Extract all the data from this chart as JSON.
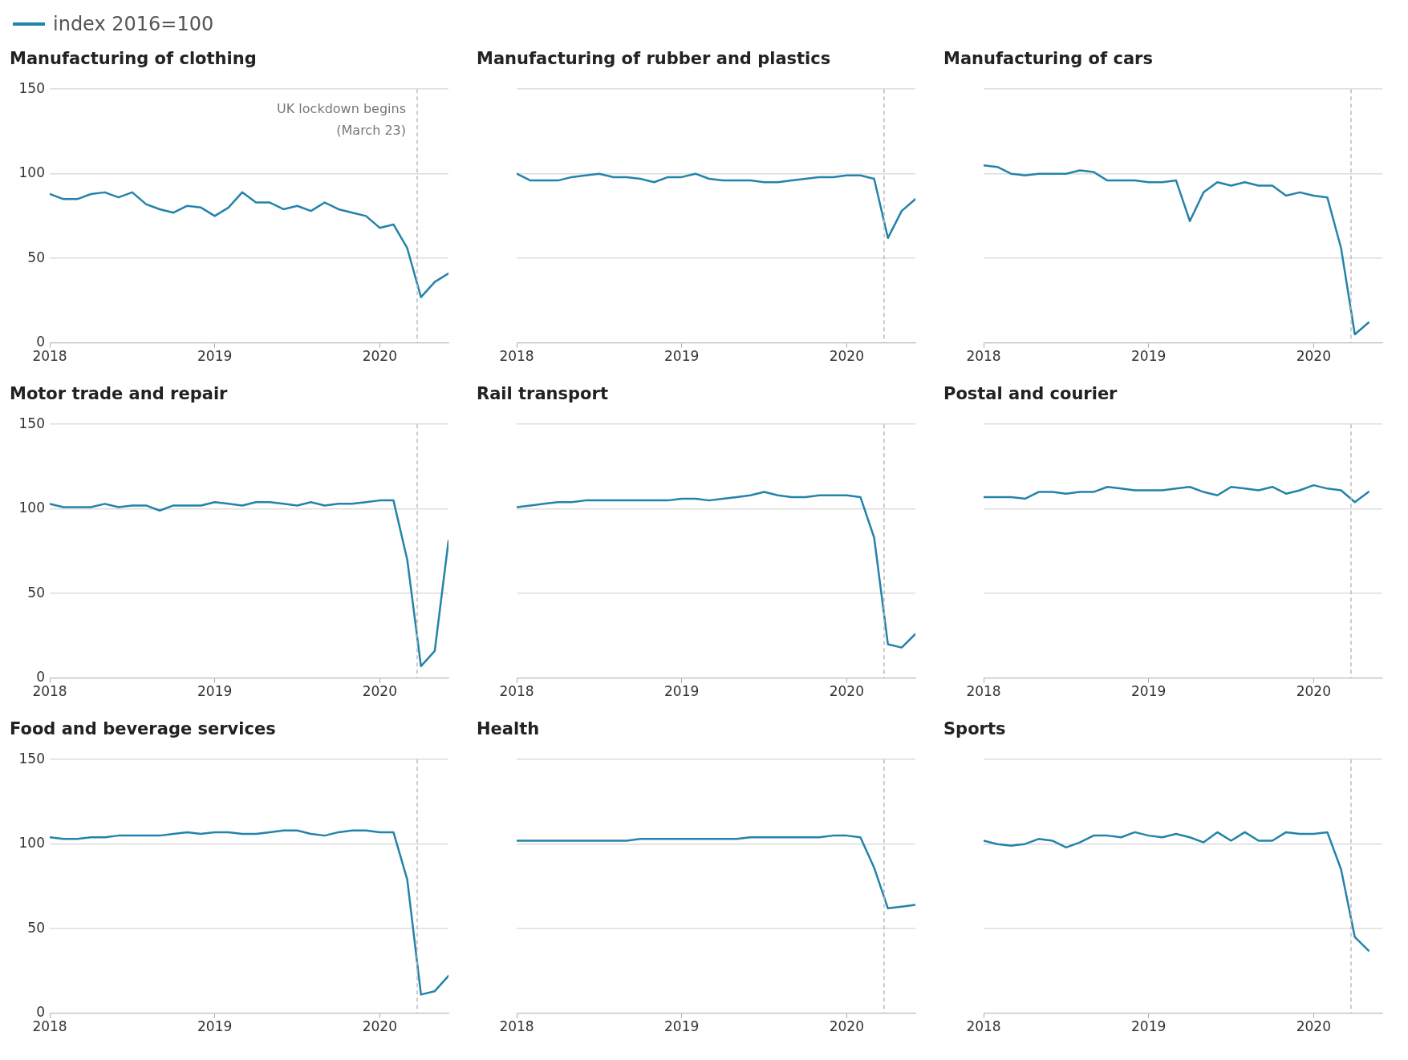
{
  "chart_data": [
    {
      "type": "line",
      "title": "Manufacturing of clothing",
      "legend": "top left",
      "grid": "y",
      "x": [
        "2018-01",
        "2018-02",
        "2018-03",
        "2018-04",
        "2018-05",
        "2018-06",
        "2018-07",
        "2018-08",
        "2018-09",
        "2018-10",
        "2018-11",
        "2018-12",
        "2019-01",
        "2019-02",
        "2019-03",
        "2019-04",
        "2019-05",
        "2019-06",
        "2019-07",
        "2019-08",
        "2019-09",
        "2019-10",
        "2019-11",
        "2019-12",
        "2020-01",
        "2020-02",
        "2020-03",
        "2020-04",
        "2020-05",
        "2020-06"
      ],
      "xlim": [
        "2018-01",
        "2020-06"
      ],
      "xticks": [
        "2018",
        "2019",
        "2020"
      ],
      "ylim": [
        0,
        150
      ],
      "yticks": [
        0,
        50,
        100,
        150
      ],
      "series": [
        {
          "name": "index 2016=100",
          "color": "#2383aa",
          "values": [
            88,
            85,
            85,
            88,
            89,
            86,
            89,
            82,
            79,
            77,
            81,
            80,
            75,
            80,
            89,
            83,
            83,
            79,
            81,
            78,
            83,
            79,
            77,
            75,
            68,
            70,
            56,
            27,
            36,
            41
          ]
        }
      ],
      "ref_lines": [
        {
          "axis": "x",
          "value": "2020-03-23",
          "label": "UK lockdown begins (March 23)",
          "color": "#bbbbbb",
          "line_style": "dashed"
        }
      ]
    },
    {
      "type": "line",
      "title": "Manufacturing of rubber and plastics",
      "tick_labels": "x",
      "grid": "y",
      "x": [
        "2018-01",
        "2018-02",
        "2018-03",
        "2018-04",
        "2018-05",
        "2018-06",
        "2018-07",
        "2018-08",
        "2018-09",
        "2018-10",
        "2018-11",
        "2018-12",
        "2019-01",
        "2019-02",
        "2019-03",
        "2019-04",
        "2019-05",
        "2019-06",
        "2019-07",
        "2019-08",
        "2019-09",
        "2019-10",
        "2019-11",
        "2019-12",
        "2020-01",
        "2020-02",
        "2020-03",
        "2020-04",
        "2020-05",
        "2020-06"
      ],
      "xlim": [
        "2018-01",
        "2020-06"
      ],
      "xticks": [
        "2018",
        "2019",
        "2020"
      ],
      "ylim": [
        0,
        150
      ],
      "yticks": [
        0,
        50,
        100,
        150
      ],
      "series": [
        {
          "color": "#2383aa",
          "values": [
            100,
            96,
            96,
            96,
            98,
            99,
            100,
            98,
            98,
            97,
            95,
            98,
            98,
            100,
            97,
            96,
            96,
            96,
            95,
            95,
            96,
            97,
            98,
            98,
            99,
            99,
            97,
            62,
            78,
            85
          ]
        }
      ],
      "ref_lines": [
        {
          "axis": "x",
          "value": "2020-03-23",
          "color": "#bbbbbb",
          "line_style": "dashed"
        }
      ]
    },
    {
      "type": "line",
      "title": "Manufacturing of cars",
      "tick_labels": "x",
      "grid": "y",
      "x": [
        "2018-01",
        "2018-02",
        "2018-03",
        "2018-04",
        "2018-05",
        "2018-06",
        "2018-07",
        "2018-08",
        "2018-09",
        "2018-10",
        "2018-11",
        "2018-12",
        "2019-01",
        "2019-02",
        "2019-03",
        "2019-04",
        "2019-05",
        "2019-06",
        "2019-07",
        "2019-08",
        "2019-09",
        "2019-10",
        "2019-11",
        "2019-12",
        "2020-01",
        "2020-02",
        "2020-03",
        "2020-04",
        "2020-05"
      ],
      "xlim": [
        "2018-01",
        "2020-06"
      ],
      "xticks": [
        "2018",
        "2019",
        "2020"
      ],
      "ylim": [
        0,
        150
      ],
      "yticks": [
        0,
        50,
        100,
        150
      ],
      "series": [
        {
          "color": "#2383aa",
          "values": [
            105,
            104,
            100,
            99,
            100,
            100,
            100,
            102,
            101,
            96,
            96,
            96,
            95,
            95,
            96,
            72,
            89,
            95,
            93,
            95,
            93,
            93,
            87,
            89,
            87,
            86,
            56,
            5,
            12
          ]
        }
      ],
      "ref_lines": [
        {
          "axis": "x",
          "value": "2020-03-23",
          "color": "#bbbbbb",
          "line_style": "dashed"
        }
      ]
    },
    {
      "type": "line",
      "title": "Motor trade and repair",
      "grid": "y",
      "x": [
        "2018-01",
        "2018-02",
        "2018-03",
        "2018-04",
        "2018-05",
        "2018-06",
        "2018-07",
        "2018-08",
        "2018-09",
        "2018-10",
        "2018-11",
        "2018-12",
        "2019-01",
        "2019-02",
        "2019-03",
        "2019-04",
        "2019-05",
        "2019-06",
        "2019-07",
        "2019-08",
        "2019-09",
        "2019-10",
        "2019-11",
        "2019-12",
        "2020-01",
        "2020-02",
        "2020-03",
        "2020-04",
        "2020-05",
        "2020-06"
      ],
      "xlim": [
        "2018-01",
        "2020-06"
      ],
      "xticks": [
        "2018",
        "2019",
        "2020"
      ],
      "ylim": [
        0,
        150
      ],
      "yticks": [
        0,
        50,
        100,
        150
      ],
      "series": [
        {
          "color": "#2383aa",
          "values": [
            103,
            101,
            101,
            101,
            103,
            101,
            102,
            102,
            99,
            102,
            102,
            102,
            104,
            103,
            102,
            104,
            104,
            103,
            102,
            104,
            102,
            103,
            103,
            104,
            105,
            105,
            70,
            7,
            16,
            81
          ]
        }
      ],
      "ref_lines": [
        {
          "axis": "x",
          "value": "2020-03-23",
          "color": "#bbbbbb",
          "line_style": "dashed"
        }
      ]
    },
    {
      "type": "line",
      "title": "Rail transport",
      "tick_labels": "x",
      "grid": "y",
      "x": [
        "2018-01",
        "2018-02",
        "2018-03",
        "2018-04",
        "2018-05",
        "2018-06",
        "2018-07",
        "2018-08",
        "2018-09",
        "2018-10",
        "2018-11",
        "2018-12",
        "2019-01",
        "2019-02",
        "2019-03",
        "2019-04",
        "2019-05",
        "2019-06",
        "2019-07",
        "2019-08",
        "2019-09",
        "2019-10",
        "2019-11",
        "2019-12",
        "2020-01",
        "2020-02",
        "2020-03",
        "2020-04",
        "2020-05",
        "2020-06"
      ],
      "xlim": [
        "2018-01",
        "2020-06"
      ],
      "xticks": [
        "2018",
        "2019",
        "2020"
      ],
      "ylim": [
        0,
        150
      ],
      "yticks": [
        0,
        50,
        100,
        150
      ],
      "series": [
        {
          "color": "#2383aa",
          "values": [
            101,
            102,
            103,
            104,
            104,
            105,
            105,
            105,
            105,
            105,
            105,
            105,
            106,
            106,
            105,
            106,
            107,
            108,
            110,
            108,
            107,
            107,
            108,
            108,
            108,
            107,
            83,
            20,
            18,
            26
          ]
        }
      ],
      "ref_lines": [
        {
          "axis": "x",
          "value": "2020-03-23",
          "color": "#bbbbbb",
          "line_style": "dashed"
        }
      ]
    },
    {
      "type": "line",
      "title": "Postal and courier",
      "tick_labels": "x",
      "grid": "y",
      "x": [
        "2018-01",
        "2018-02",
        "2018-03",
        "2018-04",
        "2018-05",
        "2018-06",
        "2018-07",
        "2018-08",
        "2018-09",
        "2018-10",
        "2018-11",
        "2018-12",
        "2019-01",
        "2019-02",
        "2019-03",
        "2019-04",
        "2019-05",
        "2019-06",
        "2019-07",
        "2019-08",
        "2019-09",
        "2019-10",
        "2019-11",
        "2019-12",
        "2020-01",
        "2020-02",
        "2020-03",
        "2020-04",
        "2020-05"
      ],
      "xlim": [
        "2018-01",
        "2020-06"
      ],
      "xticks": [
        "2018",
        "2019",
        "2020"
      ],
      "ylim": [
        0,
        150
      ],
      "yticks": [
        0,
        50,
        100,
        150
      ],
      "series": [
        {
          "color": "#2383aa",
          "values": [
            107,
            107,
            107,
            106,
            110,
            110,
            109,
            110,
            110,
            113,
            112,
            111,
            111,
            111,
            112,
            113,
            110,
            108,
            113,
            112,
            111,
            113,
            109,
            111,
            114,
            112,
            111,
            104,
            110
          ]
        }
      ],
      "ref_lines": [
        {
          "axis": "x",
          "value": "2020-03-23",
          "color": "#bbbbbb",
          "line_style": "dashed"
        }
      ]
    },
    {
      "type": "line",
      "title": "Food and beverage services",
      "grid": "y",
      "x": [
        "2018-01",
        "2018-02",
        "2018-03",
        "2018-04",
        "2018-05",
        "2018-06",
        "2018-07",
        "2018-08",
        "2018-09",
        "2018-10",
        "2018-11",
        "2018-12",
        "2019-01",
        "2019-02",
        "2019-03",
        "2019-04",
        "2019-05",
        "2019-06",
        "2019-07",
        "2019-08",
        "2019-09",
        "2019-10",
        "2019-11",
        "2019-12",
        "2020-01",
        "2020-02",
        "2020-03",
        "2020-04",
        "2020-05",
        "2020-06"
      ],
      "xlim": [
        "2018-01",
        "2020-06"
      ],
      "xticks": [
        "2018",
        "2019",
        "2020"
      ],
      "ylim": [
        0,
        150
      ],
      "yticks": [
        0,
        50,
        100,
        150
      ],
      "series": [
        {
          "color": "#2383aa",
          "values": [
            104,
            103,
            103,
            104,
            104,
            105,
            105,
            105,
            105,
            106,
            107,
            106,
            107,
            107,
            106,
            106,
            107,
            108,
            108,
            106,
            105,
            107,
            108,
            108,
            107,
            107,
            79,
            11,
            13,
            22
          ]
        }
      ],
      "ref_lines": [
        {
          "axis": "x",
          "value": "2020-03-23",
          "color": "#bbbbbb",
          "line_style": "dashed"
        }
      ]
    },
    {
      "type": "line",
      "title": "Health",
      "tick_labels": "x",
      "grid": "y",
      "x": [
        "2018-01",
        "2018-02",
        "2018-03",
        "2018-04",
        "2018-05",
        "2018-06",
        "2018-07",
        "2018-08",
        "2018-09",
        "2018-10",
        "2018-11",
        "2018-12",
        "2019-01",
        "2019-02",
        "2019-03",
        "2019-04",
        "2019-05",
        "2019-06",
        "2019-07",
        "2019-08",
        "2019-09",
        "2019-10",
        "2019-11",
        "2019-12",
        "2020-01",
        "2020-02",
        "2020-03",
        "2020-04",
        "2020-05",
        "2020-06"
      ],
      "xlim": [
        "2018-01",
        "2020-06"
      ],
      "xticks": [
        "2018",
        "2019",
        "2020"
      ],
      "ylim": [
        0,
        150
      ],
      "yticks": [
        0,
        50,
        100,
        150
      ],
      "series": [
        {
          "color": "#2383aa",
          "values": [
            102,
            102,
            102,
            102,
            102,
            102,
            102,
            102,
            102,
            103,
            103,
            103,
            103,
            103,
            103,
            103,
            103,
            104,
            104,
            104,
            104,
            104,
            104,
            105,
            105,
            104,
            86,
            62,
            63,
            64
          ]
        }
      ],
      "ref_lines": [
        {
          "axis": "x",
          "value": "2020-03-23",
          "color": "#bbbbbb",
          "line_style": "dashed"
        }
      ]
    },
    {
      "type": "line",
      "title": "Sports",
      "tick_labels": "x",
      "grid": "y",
      "x": [
        "2018-01",
        "2018-02",
        "2018-03",
        "2018-04",
        "2018-05",
        "2018-06",
        "2018-07",
        "2018-08",
        "2018-09",
        "2018-10",
        "2018-11",
        "2018-12",
        "2019-01",
        "2019-02",
        "2019-03",
        "2019-04",
        "2019-05",
        "2019-06",
        "2019-07",
        "2019-08",
        "2019-09",
        "2019-10",
        "2019-11",
        "2019-12",
        "2020-01",
        "2020-02",
        "2020-03",
        "2020-04",
        "2020-05"
      ],
      "xlim": [
        "2018-01",
        "2020-06"
      ],
      "xticks": [
        "2018",
        "2019",
        "2020"
      ],
      "ylim": [
        0,
        150
      ],
      "yticks": [
        0,
        50,
        100,
        150
      ],
      "series": [
        {
          "color": "#2383aa",
          "values": [
            102,
            100,
            99,
            100,
            103,
            102,
            98,
            101,
            105,
            105,
            104,
            107,
            105,
            104,
            106,
            104,
            101,
            107,
            102,
            107,
            102,
            102,
            107,
            106,
            106,
            107,
            85,
            45,
            37
          ]
        }
      ],
      "ref_lines": [
        {
          "axis": "x",
          "value": "2020-03-23",
          "color": "#bbbbbb",
          "line_style": "dashed"
        }
      ]
    }
  ]
}
